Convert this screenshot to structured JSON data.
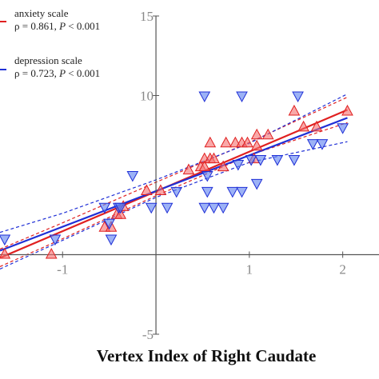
{
  "chart_data": {
    "type": "scatter",
    "title": "",
    "xlabel": "Vertex Index of Right Caudate",
    "ylabel": "",
    "xlim": [
      -1.67,
      2.2
    ],
    "ylim": [
      -5,
      15
    ],
    "x_ticks": [
      -1,
      1,
      2
    ],
    "y_ticks": [
      -5,
      10,
      15
    ],
    "x_tick_labels": [
      "-1",
      "1",
      "2"
    ],
    "y_tick_labels": [
      "-5",
      "10",
      "15"
    ],
    "grid": false,
    "legend_position": "top-left",
    "series": [
      {
        "name": "anxiety scale",
        "stat": "ρ = 0.861, P < 0.001",
        "stat_rho": "ρ = 0.861, ",
        "stat_p": "P",
        "stat_tail": " < 0.001",
        "color": "#e02020",
        "marker": "triangle-up",
        "fit": {
          "x": [
            -1.67,
            2.05
          ],
          "y": [
            -0.2,
            9.1
          ]
        },
        "ci_upper": {
          "x": [
            -1.67,
            -1.0,
            0,
            1.0,
            2.05
          ],
          "y": [
            0.35,
            2.0,
            4.55,
            7.05,
            9.9
          ]
        },
        "ci_lower": {
          "x": [
            -1.67,
            -1.0,
            0,
            1.0,
            2.05
          ],
          "y": [
            -0.75,
            1.0,
            3.7,
            6.25,
            8.3
          ]
        },
        "points": [
          [
            -1.62,
            0.0
          ],
          [
            -1.12,
            0.0
          ],
          [
            -0.55,
            1.7
          ],
          [
            -0.48,
            1.7
          ],
          [
            -0.42,
            2.5
          ],
          [
            -0.38,
            2.5
          ],
          [
            -0.35,
            3.0
          ],
          [
            -0.1,
            4.0
          ],
          [
            0.05,
            4.0
          ],
          [
            0.35,
            5.3
          ],
          [
            0.48,
            5.5
          ],
          [
            0.52,
            6.0
          ],
          [
            0.58,
            6.0
          ],
          [
            0.52,
            5.5
          ],
          [
            0.62,
            6.0
          ],
          [
            0.72,
            5.5
          ],
          [
            0.58,
            7.0
          ],
          [
            0.75,
            7.0
          ],
          [
            0.85,
            7.0
          ],
          [
            0.92,
            7.0
          ],
          [
            0.98,
            7.0
          ],
          [
            1.05,
            6.0
          ],
          [
            1.08,
            6.8
          ],
          [
            1.2,
            7.5
          ],
          [
            1.08,
            7.5
          ],
          [
            1.58,
            8.0
          ],
          [
            1.72,
            8.0
          ],
          [
            1.48,
            9.0
          ],
          [
            2.05,
            9.0
          ]
        ]
      },
      {
        "name": "depression scale",
        "stat": "ρ = 0.723, P < 0.001",
        "stat_rho": "ρ = 0.723, ",
        "stat_p": "P",
        "stat_tail": " < 0.001",
        "color": "#1f2fd6",
        "marker": "triangle-down",
        "fit": {
          "x": [
            -1.67,
            2.05
          ],
          "y": [
            0.25,
            8.6
          ]
        },
        "ci_upper": {
          "x": [
            -1.67,
            -1.0,
            0,
            1.0,
            2.05
          ],
          "y": [
            1.4,
            2.6,
            4.7,
            7.0,
            10.1
          ]
        },
        "ci_lower": {
          "x": [
            -1.67,
            -1.0,
            0,
            1.0,
            2.05
          ],
          "y": [
            -0.9,
            0.9,
            3.6,
            5.8,
            7.1
          ]
        },
        "points": [
          [
            -1.62,
            1.0
          ],
          [
            -1.08,
            1.0
          ],
          [
            -0.48,
            1.0
          ],
          [
            -0.5,
            2.0
          ],
          [
            -0.55,
            3.0
          ],
          [
            -0.4,
            3.0
          ],
          [
            -0.38,
            3.0
          ],
          [
            -0.25,
            5.0
          ],
          [
            -0.05,
            3.0
          ],
          [
            0.12,
            3.0
          ],
          [
            0.22,
            4.0
          ],
          [
            0.52,
            3.0
          ],
          [
            0.55,
            4.0
          ],
          [
            0.62,
            3.0
          ],
          [
            0.72,
            3.0
          ],
          [
            0.82,
            4.0
          ],
          [
            0.92,
            4.0
          ],
          [
            1.08,
            4.5
          ],
          [
            0.52,
            10.0
          ],
          [
            0.92,
            10.0
          ],
          [
            0.55,
            5.0
          ],
          [
            0.88,
            5.7
          ],
          [
            1.02,
            6.0
          ],
          [
            1.12,
            6.0
          ],
          [
            1.3,
            6.0
          ],
          [
            1.48,
            6.0
          ],
          [
            1.52,
            10.0
          ],
          [
            1.68,
            7.0
          ],
          [
            1.78,
            7.0
          ],
          [
            2.0,
            8.0
          ]
        ]
      }
    ]
  }
}
